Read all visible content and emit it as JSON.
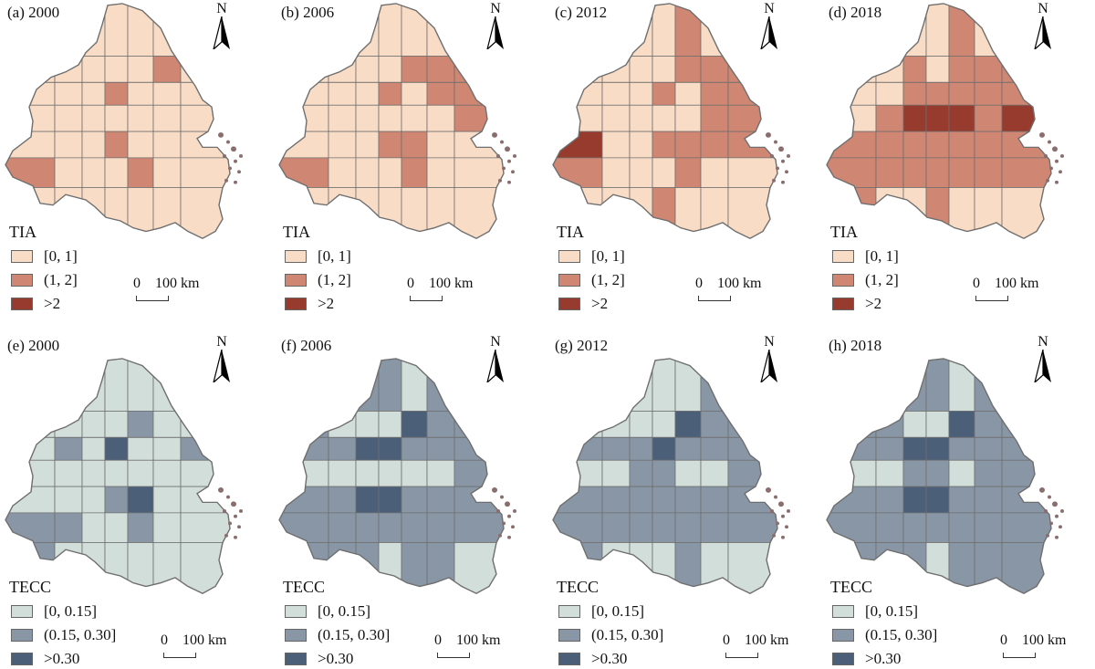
{
  "colors": {
    "tia": [
      "#f9dcc6",
      "#cf8672",
      "#963b2e"
    ],
    "tecc": [
      "#d2deda",
      "#8896a6",
      "#4c5f78"
    ],
    "border": "#6f6f6f"
  },
  "rows": [
    {
      "legend_title": "TIA",
      "legend_labels": [
        "[0, 1]",
        "(1, 2]",
        ">2"
      ],
      "panels": [
        {
          "label": "(a) 2000",
          "classes": [
            0,
            0,
            0,
            0,
            0,
            0,
            0,
            0,
            0,
            1,
            0,
            0,
            0,
            0,
            1,
            0,
            0,
            0,
            0,
            0,
            0,
            0,
            0,
            0,
            0,
            0,
            0,
            0,
            1,
            0,
            0,
            0,
            1,
            0,
            0,
            0,
            1,
            0,
            0,
            0
          ]
        },
        {
          "label": "(b) 2006",
          "classes": [
            0,
            0,
            0,
            0,
            0,
            0,
            0,
            0,
            1,
            1,
            1,
            0,
            0,
            0,
            1,
            0,
            1,
            1,
            0,
            0,
            0,
            0,
            0,
            0,
            1,
            0,
            0,
            0,
            1,
            1,
            0,
            0,
            1,
            0,
            0,
            0,
            1,
            0,
            0,
            0
          ]
        },
        {
          "label": "(c) 2012",
          "classes": [
            0,
            0,
            1,
            0,
            0,
            0,
            0,
            0,
            1,
            1,
            1,
            0,
            0,
            0,
            1,
            0,
            1,
            1,
            0,
            0,
            0,
            0,
            0,
            1,
            1,
            2,
            0,
            0,
            1,
            1,
            1,
            1,
            1,
            0,
            0,
            0,
            1,
            0,
            0,
            0
          ]
        },
        {
          "label": "(d) 2018",
          "classes": [
            0,
            0,
            1,
            0,
            0,
            0,
            1,
            0,
            1,
            1,
            1,
            0,
            0,
            1,
            1,
            1,
            1,
            1,
            0,
            1,
            2,
            2,
            2,
            1,
            2,
            1,
            1,
            1,
            1,
            1,
            1,
            1,
            1,
            1,
            1,
            1,
            1,
            1,
            1,
            1
          ]
        }
      ]
    },
    {
      "legend_title": "TECC",
      "legend_labels": [
        "[0, 0.15]",
        "(0.15, 0.30]",
        ">0.30"
      ],
      "panels": [
        {
          "label": "(e) 2000",
          "classes": [
            0,
            0,
            0,
            0,
            0,
            0,
            0,
            0,
            1,
            0,
            0,
            0,
            1,
            0,
            2,
            0,
            0,
            1,
            0,
            0,
            0,
            0,
            0,
            0,
            0,
            0,
            0,
            0,
            1,
            2,
            0,
            0,
            1,
            1,
            0,
            0,
            1,
            0,
            0,
            1
          ]
        },
        {
          "label": "(f) 2006",
          "classes": [
            1,
            1,
            0,
            1,
            1,
            0,
            0,
            0,
            2,
            1,
            1,
            1,
            1,
            2,
            2,
            1,
            1,
            1,
            0,
            0,
            0,
            0,
            0,
            0,
            1,
            1,
            1,
            2,
            2,
            1,
            1,
            1,
            1,
            1,
            1,
            1,
            1,
            1,
            1,
            1
          ]
        },
        {
          "label": "(g) 2012",
          "classes": [
            0,
            0,
            0,
            1,
            0,
            0,
            0,
            0,
            2,
            1,
            1,
            1,
            1,
            1,
            2,
            1,
            1,
            1,
            0,
            0,
            1,
            1,
            0,
            0,
            1,
            1,
            1,
            1,
            1,
            1,
            1,
            1,
            1,
            1,
            1,
            1,
            1,
            1,
            1,
            1
          ]
        },
        {
          "label": "(h) 2018",
          "classes": [
            1,
            1,
            0,
            1,
            1,
            1,
            0,
            0,
            2,
            1,
            1,
            1,
            1,
            2,
            2,
            1,
            1,
            1,
            0,
            0,
            1,
            1,
            0,
            1,
            1,
            1,
            1,
            2,
            2,
            1,
            1,
            1,
            1,
            1,
            1,
            1,
            1,
            1,
            1,
            1
          ]
        }
      ]
    }
  ],
  "north_label": "N",
  "scale": {
    "zero": "0",
    "length": "100 km"
  }
}
